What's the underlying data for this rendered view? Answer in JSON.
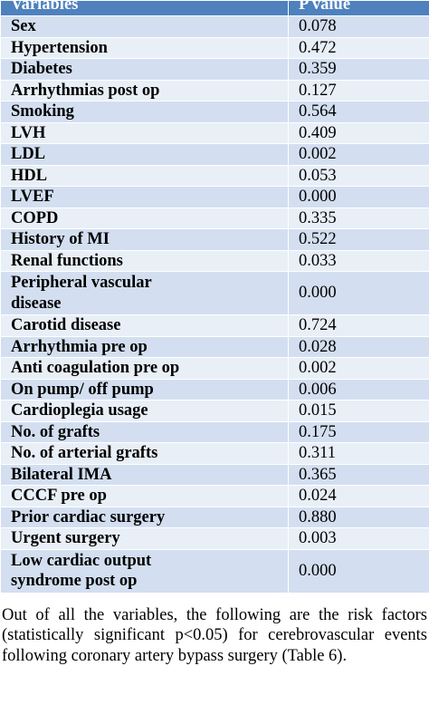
{
  "table": {
    "headers": [
      "Variables",
      "P value"
    ],
    "rows": [
      {
        "variable": "Sex",
        "p": "0.078"
      },
      {
        "variable": "Hypertension",
        "p": "0.472"
      },
      {
        "variable": "Diabetes",
        "p": "0.359"
      },
      {
        "variable": "Arrhythmias post op",
        "p": "0.127"
      },
      {
        "variable": "Smoking",
        "p": "0.564"
      },
      {
        "variable": "LVH",
        "p": "0.409"
      },
      {
        "variable": "LDL",
        "p": "0.002"
      },
      {
        "variable": "HDL",
        "p": "0.053"
      },
      {
        "variable": "LVEF",
        "p": "0.000"
      },
      {
        "variable": "COPD",
        "p": "0.335"
      },
      {
        "variable": "History of MI",
        "p": "0.522"
      },
      {
        "variable": "Renal functions",
        "p": "0.033"
      },
      {
        "variable": "Peripheral vascular disease",
        "p": "0.000"
      },
      {
        "variable": "Carotid disease",
        "p": "0.724"
      },
      {
        "variable": "Arrhythmia pre op",
        "p": "0.028"
      },
      {
        "variable": "Anti coagulation pre op",
        "p": "0.002"
      },
      {
        "variable": "On pump/ off pump",
        "p": "0.006"
      },
      {
        "variable": "Cardioplegia usage",
        "p": "0.015"
      },
      {
        "variable": "No. of grafts",
        "p": "0.175"
      },
      {
        "variable": "No. of arterial grafts",
        "p": "0.311"
      },
      {
        "variable": "Bilateral IMA",
        "p": "0.365"
      },
      {
        "variable": "CCCF pre op",
        "p": "0.024"
      },
      {
        "variable": "Prior cardiac surgery",
        "p": "0.880"
      },
      {
        "variable": "Urgent surgery",
        "p": "0.003"
      },
      {
        "variable": "Low cardiac output syndrome post op",
        "p": "0.000"
      }
    ]
  },
  "paragraph": "Out of all the variables, the following are the risk factors (statistically significant p<0.05) for cerebrovascular events following coronary artery bypass surgery (Table 6).",
  "colors": {
    "header_bg": "#4e81bd",
    "row_odd_bg": "#d3dff0",
    "row_even_bg": "#e9eff7"
  }
}
